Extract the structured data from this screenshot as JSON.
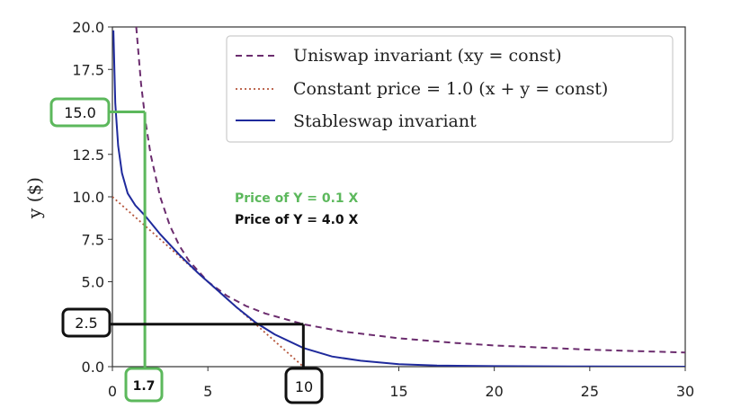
{
  "chart_data": {
    "type": "line",
    "title": "",
    "xlabel": "",
    "ylabel": "y ($)",
    "xlim": [
      0,
      30
    ],
    "ylim": [
      0,
      20
    ],
    "x_ticks": [
      "0",
      "5",
      "10",
      "15",
      "20",
      "25",
      "30"
    ],
    "y_ticks": [
      "0.0",
      "2.5",
      "5.0",
      "7.5",
      "10.0",
      "12.5",
      "15.0",
      "17.5",
      "20.0"
    ],
    "grid": false,
    "legend_position": "top-right",
    "series": [
      {
        "name": "Uniswap invariant",
        "style": "dashed",
        "color": "#6b2c6e",
        "x": [
          1.25,
          1.5,
          1.75,
          2,
          2.5,
          3,
          3.5,
          4,
          5,
          6,
          7,
          8,
          10,
          12,
          15,
          18,
          20,
          25,
          30
        ],
        "y": [
          20,
          16.67,
          14.29,
          12.5,
          10,
          8.33,
          7.14,
          6.25,
          5,
          4.17,
          3.57,
          3.13,
          2.5,
          2.08,
          1.67,
          1.39,
          1.25,
          1,
          0.83
        ]
      },
      {
        "name": "Constant price = 1.0",
        "style": "dotted",
        "color": "#b5553b",
        "x": [
          0,
          2,
          4,
          6,
          8,
          10
        ],
        "y": [
          10,
          8,
          6,
          4,
          2,
          0
        ]
      },
      {
        "name": "Stableswap invariant",
        "style": "solid",
        "color": "#1f2a9c",
        "x": [
          0.05,
          0.15,
          0.3,
          0.5,
          0.8,
          1.2,
          1.7,
          2.5,
          3.5,
          4.5,
          5.5,
          6.5,
          7.5,
          8.5,
          10,
          11.5,
          13,
          15,
          17,
          20,
          25,
          30
        ],
        "y": [
          19.8,
          15.5,
          13.0,
          11.4,
          10.2,
          9.5,
          8.9,
          7.8,
          6.6,
          5.5,
          4.5,
          3.5,
          2.6,
          1.9,
          1.1,
          0.6,
          0.35,
          0.15,
          0.07,
          0.03,
          0.01,
          0.0
        ]
      }
    ],
    "legend": {
      "uniswap": "Uniswap invariant (xy = const)",
      "constant": "Constant price = 1.0 (x + y = const)",
      "stableswap": "Stableswap invariant"
    },
    "annotations": {
      "price_green": "Price of Y = 0.1 X",
      "price_black": "Price of Y = 4.0 X",
      "green_box_y": "15.0",
      "green_box_x": "1.7",
      "black_box_y": "2.5",
      "black_box_x": "10",
      "green_point": {
        "x": 1.7,
        "y": 15.0
      },
      "black_point": {
        "x": 10,
        "y": 2.5
      },
      "green_color": "#5cb85c",
      "black_color": "#111111"
    }
  }
}
